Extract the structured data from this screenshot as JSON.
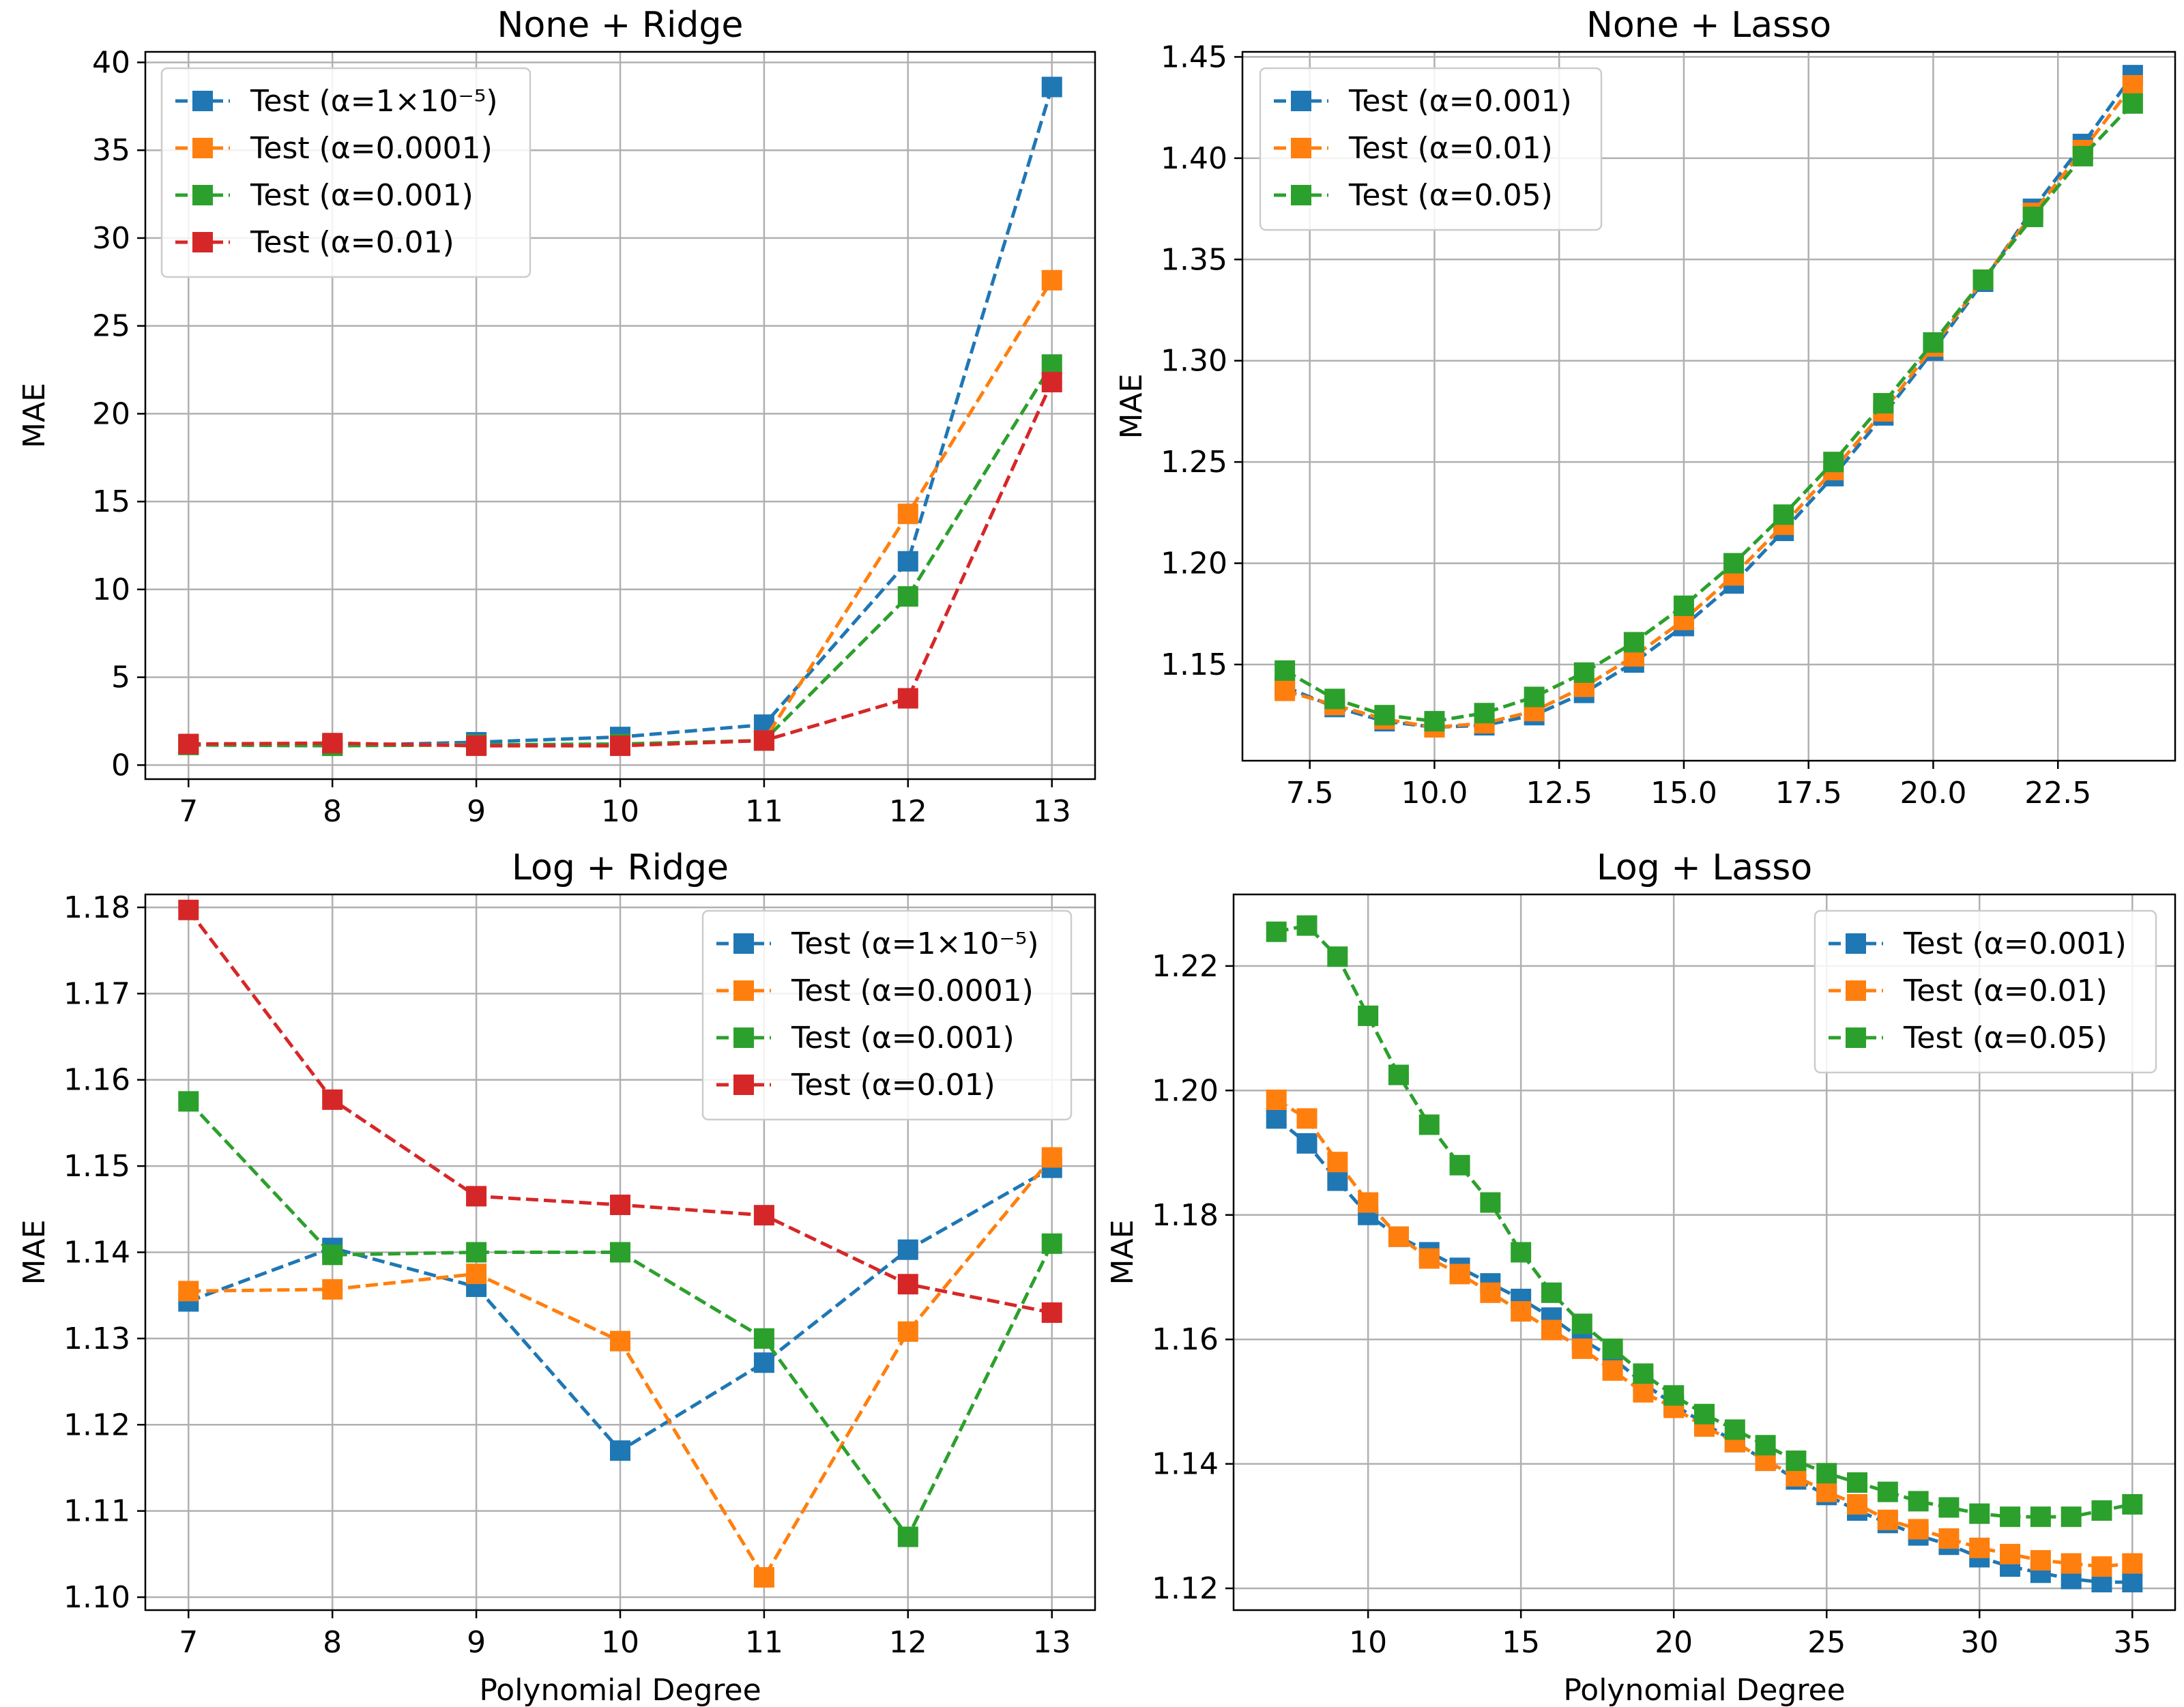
{
  "figure": {
    "colors": {
      "blue": "#1f77b4",
      "orange": "#ff7f0e",
      "green": "#2ca02c",
      "red": "#d62728",
      "grid": "#b0b0b0"
    }
  },
  "chart_data": [
    {
      "type": "line",
      "title": "None + Ridge",
      "xlabel": "",
      "ylabel": "MAE",
      "xlim": [
        6.7,
        13.3
      ],
      "ylim": [
        -0.8,
        40.6
      ],
      "xticks": [
        7,
        8,
        9,
        10,
        11,
        12,
        13
      ],
      "xtick_labels": [
        "7",
        "8",
        "9",
        "10",
        "11",
        "12",
        "13"
      ],
      "yticks": [
        0,
        5,
        10,
        15,
        20,
        25,
        30,
        35,
        40
      ],
      "ytick_labels": [
        "0",
        "5",
        "10",
        "15",
        "20",
        "25",
        "30",
        "35",
        "40"
      ],
      "legend_position": "upper-left",
      "x": [
        7,
        8,
        9,
        10,
        11,
        12,
        13
      ],
      "series": [
        {
          "name": "Test (α=1×10⁻⁵)",
          "color": "#1f77b4",
          "values": [
            1.15,
            1.1,
            1.3,
            1.6,
            2.3,
            11.6,
            38.6
          ]
        },
        {
          "name": "Test (α=0.0001)",
          "color": "#ff7f0e",
          "values": [
            1.15,
            1.15,
            1.15,
            1.15,
            1.4,
            14.3,
            27.6
          ]
        },
        {
          "name": "Test (α=0.001)",
          "color": "#2ca02c",
          "values": [
            1.15,
            1.1,
            1.15,
            1.2,
            1.4,
            9.6,
            22.8
          ]
        },
        {
          "name": "Test (α=0.01)",
          "color": "#d62728",
          "values": [
            1.2,
            1.25,
            1.1,
            1.1,
            1.4,
            3.8,
            21.8
          ]
        }
      ]
    },
    {
      "type": "line",
      "title": "None + Lasso",
      "xlabel": "",
      "ylabel": "MAE",
      "xlim": [
        6.15,
        24.85
      ],
      "ylim": [
        1.1025,
        1.4525
      ],
      "xticks": [
        7.5,
        10,
        12.5,
        15,
        17.5,
        20,
        22.5
      ],
      "xtick_labels": [
        "7.5",
        "10.0",
        "12.5",
        "15.0",
        "17.5",
        "20.0",
        "22.5"
      ],
      "yticks": [
        1.15,
        1.2,
        1.25,
        1.3,
        1.35,
        1.4,
        1.45
      ],
      "ytick_labels": [
        "1.15",
        "1.20",
        "1.25",
        "1.30",
        "1.35",
        "1.40",
        "1.45"
      ],
      "legend_position": "upper-left",
      "x": [
        7,
        8,
        9,
        10,
        11,
        12,
        13,
        14,
        15,
        16,
        17,
        18,
        19,
        20,
        21,
        22,
        23,
        24
      ],
      "series": [
        {
          "name": "Test (α=0.001)",
          "color": "#1f77b4",
          "values": [
            1.139,
            1.129,
            1.122,
            1.119,
            1.12,
            1.125,
            1.136,
            1.151,
            1.169,
            1.19,
            1.216,
            1.243,
            1.273,
            1.305,
            1.339,
            1.375,
            1.407,
            1.441
          ]
        },
        {
          "name": "Test (α=0.01)",
          "color": "#ff7f0e",
          "values": [
            1.137,
            1.13,
            1.123,
            1.119,
            1.121,
            1.127,
            1.139,
            1.154,
            1.172,
            1.194,
            1.219,
            1.246,
            1.275,
            1.307,
            1.34,
            1.373,
            1.404,
            1.436
          ]
        },
        {
          "name": "Test (α=0.05)",
          "color": "#2ca02c",
          "values": [
            1.147,
            1.133,
            1.125,
            1.122,
            1.126,
            1.134,
            1.146,
            1.161,
            1.179,
            1.2,
            1.224,
            1.25,
            1.279,
            1.309,
            1.34,
            1.371,
            1.401,
            1.427
          ]
        }
      ]
    },
    {
      "type": "line",
      "title": "Log + Ridge",
      "xlabel": "Polynomial Degree",
      "ylabel": "MAE",
      "xlim": [
        6.7,
        13.3
      ],
      "ylim": [
        1.0985,
        1.1815
      ],
      "xticks": [
        7,
        8,
        9,
        10,
        11,
        12,
        13
      ],
      "xtick_labels": [
        "7",
        "8",
        "9",
        "10",
        "11",
        "12",
        "13"
      ],
      "yticks": [
        1.1,
        1.11,
        1.12,
        1.13,
        1.14,
        1.15,
        1.16,
        1.17,
        1.18
      ],
      "ytick_labels": [
        "1.10",
        "1.11",
        "1.12",
        "1.13",
        "1.14",
        "1.15",
        "1.16",
        "1.17",
        "1.18"
      ],
      "legend_position": "upper-right",
      "x": [
        7,
        8,
        9,
        10,
        11,
        12,
        13
      ],
      "series": [
        {
          "name": "Test (α=1×10⁻⁵)",
          "color": "#1f77b4",
          "values": [
            1.1343,
            1.1405,
            1.136,
            1.117,
            1.1272,
            1.1403,
            1.1498
          ]
        },
        {
          "name": "Test (α=0.0001)",
          "color": "#ff7f0e",
          "values": [
            1.1355,
            1.1357,
            1.1375,
            1.1297,
            1.1023,
            1.1308,
            1.151
          ]
        },
        {
          "name": "Test (α=0.001)",
          "color": "#2ca02c",
          "values": [
            1.1575,
            1.1397,
            1.14,
            1.14,
            1.13,
            1.107,
            1.141
          ]
        },
        {
          "name": "Test (α=0.01)",
          "color": "#d62728",
          "values": [
            1.1797,
            1.1577,
            1.1465,
            1.1455,
            1.1443,
            1.1363,
            1.133
          ]
        }
      ]
    },
    {
      "type": "line",
      "title": "Log + Lasso",
      "xlabel": "Polynomial Degree",
      "ylabel": "MAE",
      "xlim": [
        5.6,
        36.4
      ],
      "ylim": [
        1.1165,
        1.2315
      ],
      "xticks": [
        10,
        15,
        20,
        25,
        30,
        35
      ],
      "xtick_labels": [
        "10",
        "15",
        "20",
        "25",
        "30",
        "35"
      ],
      "yticks": [
        1.12,
        1.14,
        1.16,
        1.18,
        1.2,
        1.22
      ],
      "ytick_labels": [
        "1.12",
        "1.14",
        "1.16",
        "1.18",
        "1.20",
        "1.22"
      ],
      "legend_position": "upper-right",
      "x": [
        7,
        8,
        9,
        10,
        11,
        12,
        13,
        14,
        15,
        16,
        17,
        18,
        19,
        20,
        21,
        22,
        23,
        24,
        25,
        26,
        27,
        28,
        29,
        30,
        31,
        32,
        33,
        34,
        35
      ],
      "series": [
        {
          "name": "Test (α=0.001)",
          "color": "#1f77b4",
          "values": [
            1.1955,
            1.1915,
            1.1855,
            1.18,
            1.1765,
            1.174,
            1.1715,
            1.169,
            1.1665,
            1.1635,
            1.16,
            1.157,
            1.153,
            1.1495,
            1.1465,
            1.1435,
            1.1405,
            1.1375,
            1.135,
            1.1325,
            1.1305,
            1.1285,
            1.127,
            1.125,
            1.1235,
            1.1225,
            1.1215,
            1.121,
            1.121
          ]
        },
        {
          "name": "Test (α=0.01)",
          "color": "#ff7f0e",
          "values": [
            1.1985,
            1.1955,
            1.1885,
            1.182,
            1.1765,
            1.173,
            1.1705,
            1.1675,
            1.1645,
            1.1615,
            1.1585,
            1.155,
            1.1515,
            1.149,
            1.146,
            1.1435,
            1.1405,
            1.138,
            1.1355,
            1.1335,
            1.131,
            1.1295,
            1.128,
            1.1265,
            1.1255,
            1.1245,
            1.124,
            1.1235,
            1.124
          ]
        },
        {
          "name": "Test (α=0.05)",
          "color": "#2ca02c",
          "values": [
            1.2255,
            1.2265,
            1.2215,
            1.212,
            1.2025,
            1.1945,
            1.188,
            1.182,
            1.174,
            1.1675,
            1.1625,
            1.1585,
            1.1545,
            1.151,
            1.148,
            1.1455,
            1.143,
            1.1405,
            1.1385,
            1.137,
            1.1355,
            1.134,
            1.133,
            1.132,
            1.1315,
            1.1315,
            1.1315,
            1.1325,
            1.1335
          ]
        }
      ]
    }
  ]
}
